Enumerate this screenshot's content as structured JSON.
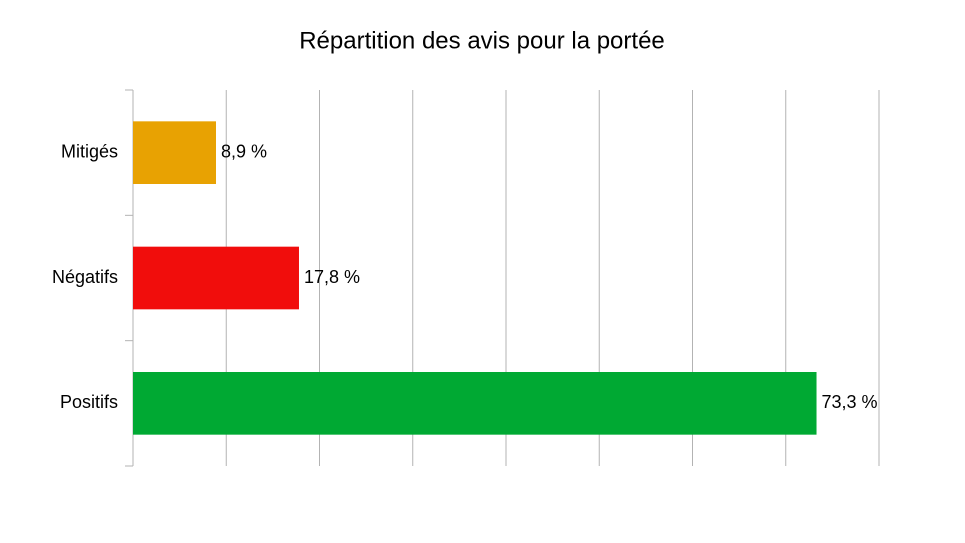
{
  "chart_data": {
    "type": "hbar",
    "title": "Répartition des avis pour la portée",
    "categories": [
      "Mitigés",
      "Négatifs",
      "Positifs"
    ],
    "values": [
      8.9,
      17.8,
      73.3
    ],
    "value_labels": [
      "8,9 %",
      "17,8 %",
      "73,3 %"
    ],
    "colors": [
      "#e8a202",
      "#f10d0c",
      "#00a933"
    ],
    "xlim": [
      0,
      80
    ],
    "xticks": [
      0,
      10,
      20,
      30,
      40,
      50,
      60,
      70,
      80
    ],
    "grid": true
  }
}
